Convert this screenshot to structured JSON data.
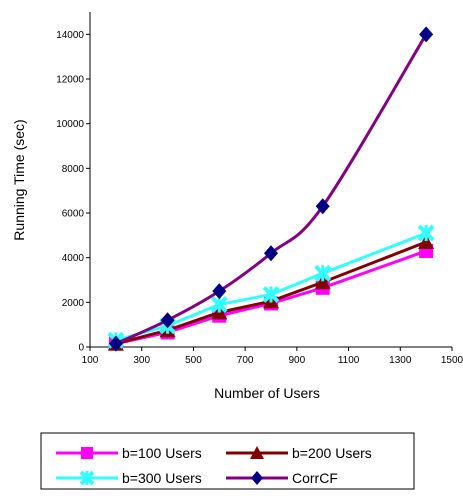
{
  "chart_data": {
    "type": "line",
    "xlabel": "Number of Users",
    "ylabel": "Running Time (sec)",
    "xlim": [
      100,
      1500
    ],
    "ylim": [
      0,
      15000
    ],
    "xticks": [
      100,
      300,
      500,
      700,
      900,
      1100,
      1300,
      1500
    ],
    "yticks": [
      0,
      2000,
      4000,
      6000,
      8000,
      10000,
      12000,
      14000
    ],
    "grid": false,
    "legend_position": "bottom",
    "x": [
      200,
      400,
      600,
      800,
      1000,
      1400
    ],
    "series": [
      {
        "name": "b=100 Users",
        "color": "#ff00ff",
        "marker": "square",
        "values": [
          150,
          650,
          1400,
          1950,
          2650,
          4300
        ]
      },
      {
        "name": "b=200 Users",
        "color": "#800000",
        "marker": "triangle",
        "values": [
          150,
          750,
          1550,
          2050,
          2900,
          4700
        ]
      },
      {
        "name": "b=300 Users",
        "color": "#33ffff",
        "marker": "star",
        "values": [
          300,
          950,
          1900,
          2350,
          3300,
          5100
        ]
      },
      {
        "name": "CorrCF",
        "color": "#000080",
        "line_color": "#800080",
        "marker": "diamond",
        "values": [
          150,
          1200,
          2500,
          4200,
          6300,
          14000
        ]
      }
    ]
  }
}
